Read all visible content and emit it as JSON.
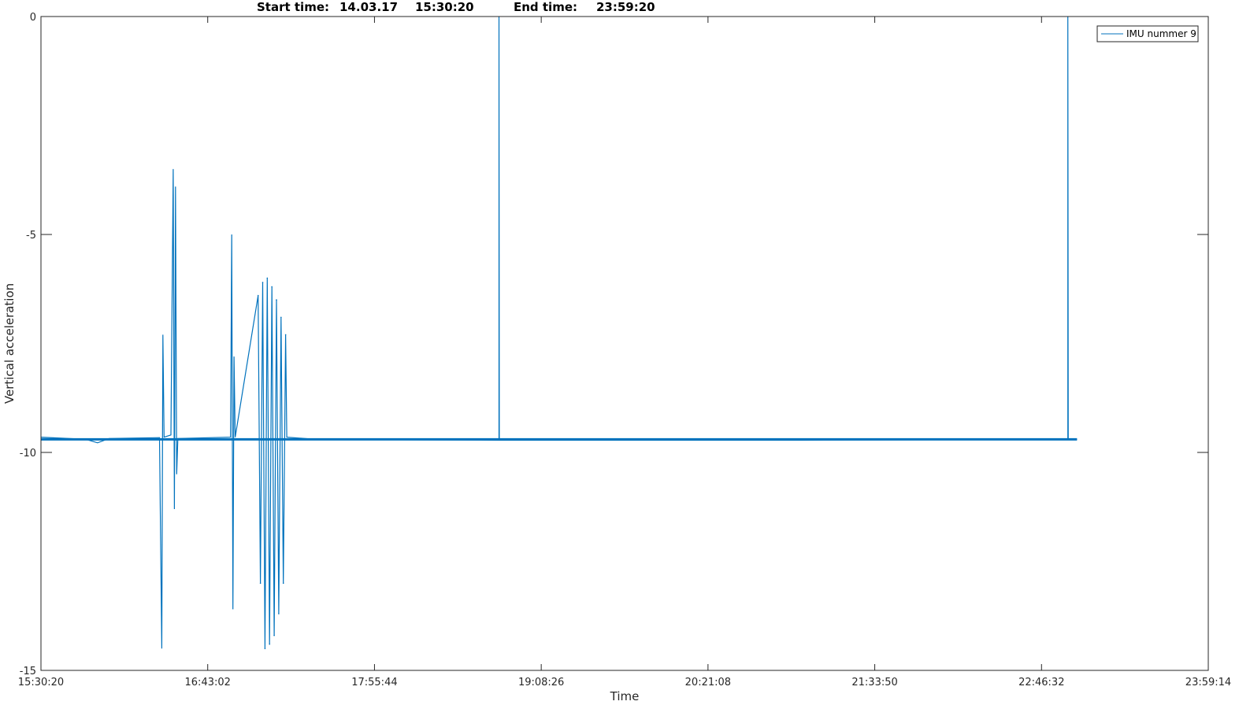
{
  "header": {
    "start_label": "Start time:",
    "start_date": "14.03.17",
    "start_time": "15:30:20",
    "end_label": "End time:",
    "end_time": "23:59:20"
  },
  "colors": {
    "series": "#0072BD",
    "axis": "#262626",
    "background": "#ffffff"
  },
  "chart_data": {
    "type": "line",
    "title": "",
    "xlabel": "Time",
    "ylabel": "Vertical acceleration",
    "x_unit": "hh:mm:ss",
    "xlim": [
      "15:30:20",
      "23:59:14"
    ],
    "ylim": [
      -15,
      0
    ],
    "x_ticks": [
      "15:30:20",
      "16:43:02",
      "17:55:44",
      "19:08:26",
      "20:21:08",
      "21:33:50",
      "22:46:32",
      "23:59:14"
    ],
    "y_ticks": [
      0,
      -5,
      -10,
      -15
    ],
    "grid": false,
    "legend_position": "top-right",
    "series": [
      {
        "name": "IMU nummer 9",
        "baseline": -9.7,
        "x_end": "23:02:00",
        "points": [
          [
            "15:30:20",
            -9.65
          ],
          [
            "15:50:00",
            -9.7
          ],
          [
            "15:55:00",
            -9.78
          ],
          [
            "16:00:00",
            -9.68
          ],
          [
            "16:22:00",
            -9.66
          ],
          [
            "16:23:00",
            -14.5
          ],
          [
            "16:23:30",
            -7.3
          ],
          [
            "16:24:00",
            -9.65
          ],
          [
            "16:27:00",
            -9.6
          ],
          [
            "16:28:00",
            -3.5
          ],
          [
            "16:28:30",
            -11.3
          ],
          [
            "16:29:00",
            -3.9
          ],
          [
            "16:29:30",
            -10.5
          ],
          [
            "16:30:00",
            -9.68
          ],
          [
            "16:53:00",
            -9.65
          ],
          [
            "16:53:30",
            -5.0
          ],
          [
            "16:54:00",
            -13.6
          ],
          [
            "16:54:30",
            -7.8
          ],
          [
            "16:55:00",
            -9.65
          ],
          [
            "17:05:00",
            -6.4
          ],
          [
            "17:06:00",
            -13.0
          ],
          [
            "17:07:00",
            -6.1
          ],
          [
            "17:08:00",
            -14.5
          ],
          [
            "17:09:00",
            -6.0
          ],
          [
            "17:10:00",
            -14.4
          ],
          [
            "17:11:00",
            -6.2
          ],
          [
            "17:12:00",
            -14.2
          ],
          [
            "17:13:00",
            -6.5
          ],
          [
            "17:14:00",
            -13.7
          ],
          [
            "17:15:00",
            -6.9
          ],
          [
            "17:16:00",
            -13.0
          ],
          [
            "17:17:00",
            -7.3
          ],
          [
            "17:17:30",
            -9.65
          ],
          [
            "17:30:00",
            -9.7
          ],
          [
            "18:50:00",
            -9.72
          ],
          [
            "18:50:00",
            0
          ],
          [
            "18:50:10",
            -9.72
          ],
          [
            "21:00:00",
            -9.72
          ],
          [
            "22:58:00",
            -9.7
          ],
          [
            "22:58:00",
            0
          ],
          [
            "22:58:10",
            -9.7
          ],
          [
            "23:02:00",
            -9.7
          ]
        ]
      }
    ]
  }
}
